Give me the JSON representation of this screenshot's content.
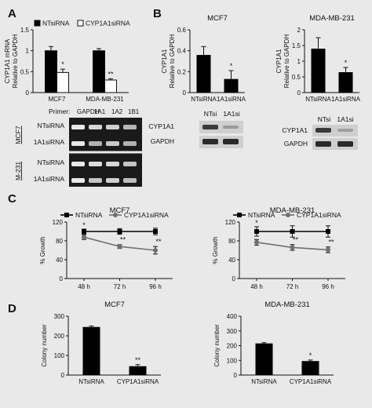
{
  "panels": {
    "A": "A",
    "B": "B",
    "C": "C",
    "D": "D"
  },
  "gel": {
    "primer_label": "Primer:",
    "columns": [
      "GAPDH",
      "1A1",
      "1A2",
      "1B1"
    ],
    "row_labels": [
      "NTsiRNA",
      "1A1siRNA",
      "NTsiRNA",
      "1A1siRNA"
    ],
    "group_labels": [
      "MCF7",
      "M-231"
    ]
  },
  "blots": [
    {
      "headers": [
        "NTsi",
        "1A1si"
      ],
      "rows": [
        "CYP1A1",
        "GAPDH"
      ]
    },
    {
      "headers": [
        "NTsi",
        "1A1si"
      ],
      "rows": [
        "CYP1A1",
        "GAPDH"
      ]
    }
  ],
  "chart_data": [
    {
      "id": "A",
      "type": "bar",
      "categories": [
        "MCF7",
        "MDA-MB-231"
      ],
      "series": [
        {
          "name": "NTsiRNA",
          "values": [
            1.0,
            1.0
          ],
          "errors": [
            0.1,
            0.05
          ],
          "fill": "#000000"
        },
        {
          "name": "CYP1A1siRNA",
          "values": [
            0.48,
            0.3
          ],
          "errors": [
            0.08,
            0.03
          ],
          "fill": "#ffffff"
        }
      ],
      "annotations": [
        {
          "series": 1,
          "index": 0,
          "text": "*"
        },
        {
          "series": 1,
          "index": 1,
          "text": "**"
        }
      ],
      "ylabel": "CYP1A1 mRNA\nRelative to GAPDH",
      "ylim": [
        0,
        1.5
      ],
      "yticks": [
        "0",
        "0.5",
        "1",
        "1.5"
      ],
      "legend": "top"
    },
    {
      "id": "B1",
      "type": "bar",
      "title": "MCF7",
      "categories": [
        "NTsiRNA",
        "1A1siRNA"
      ],
      "values": [
        0.36,
        0.13
      ],
      "errors": [
        0.08,
        0.08
      ],
      "annotations": [
        "",
        "*"
      ],
      "ylabel": "CYP1A1\nRelative to GAPDH",
      "ylim": [
        0,
        0.6
      ],
      "yticks": [
        "0",
        "0.2",
        "0.4",
        "0.6"
      ]
    },
    {
      "id": "B2",
      "type": "bar",
      "title": "MDA-MB-231",
      "categories": [
        "NTsiRNA",
        "1A1siRNA"
      ],
      "values": [
        1.4,
        0.65
      ],
      "errors": [
        0.35,
        0.15
      ],
      "annotations": [
        "",
        "*"
      ],
      "ylabel": "CYP1A1\nRelative to GAPDH",
      "ylim": [
        0,
        2
      ],
      "yticks": [
        "0",
        "0.5",
        "1",
        "1.5",
        "2"
      ]
    },
    {
      "id": "C1",
      "type": "line",
      "title": "MCF7",
      "categories": [
        "48 h",
        "72 h",
        "96 h"
      ],
      "series": [
        {
          "name": "NTsiRNA",
          "values": [
            100,
            100,
            100
          ],
          "errors": [
            5,
            6,
            7
          ],
          "color": "#000000",
          "marker": "square"
        },
        {
          "name": "CYP1A1siRNA",
          "values": [
            88,
            68,
            60
          ],
          "errors": [
            5,
            4,
            8
          ],
          "color": "#707070",
          "marker": "circle"
        }
      ],
      "annotations": [
        "*",
        "**",
        "**"
      ],
      "ylabel": "% Growth",
      "ylim": [
        0,
        120
      ],
      "yticks": [
        "0",
        "40",
        "80",
        "120"
      ],
      "legend": "top"
    },
    {
      "id": "C2",
      "type": "line",
      "title": "MDA-MB-231",
      "categories": [
        "48 h",
        "72 h",
        "96 h"
      ],
      "series": [
        {
          "name": "NTsiRNA",
          "values": [
            100,
            100,
            100
          ],
          "errors": [
            10,
            12,
            12
          ],
          "color": "#000000",
          "marker": "square"
        },
        {
          "name": "CYP1A1siRNA",
          "values": [
            77,
            66,
            61
          ],
          "errors": [
            6,
            6,
            6
          ],
          "color": "#707070",
          "marker": "circle"
        }
      ],
      "annotations": [
        "*",
        "**",
        "**"
      ],
      "ylabel": "% Growth",
      "ylim": [
        0,
        120
      ],
      "yticks": [
        "0",
        "40",
        "80",
        "120"
      ],
      "legend": "top"
    },
    {
      "id": "D1",
      "type": "bar",
      "title": "MCF7",
      "categories": [
        "NTsiRNA",
        "CYP1A1siRNA"
      ],
      "values": [
        245,
        45
      ],
      "errors": [
        5,
        8
      ],
      "annotations": [
        "",
        "**"
      ],
      "ylabel": "Colony number",
      "ylim": [
        0,
        300
      ],
      "yticks": [
        "0",
        "100",
        "200",
        "300"
      ]
    },
    {
      "id": "D2",
      "type": "bar",
      "title": "MDA-MB-231",
      "categories": [
        "NTsiRNA",
        "CYP1A1siRNA"
      ],
      "values": [
        215,
        95
      ],
      "errors": [
        5,
        7
      ],
      "annotations": [
        "",
        "*"
      ],
      "ylabel": "Colony number",
      "ylim": [
        0,
        400
      ],
      "yticks": [
        "0",
        "100",
        "200",
        "300",
        "400"
      ]
    }
  ]
}
